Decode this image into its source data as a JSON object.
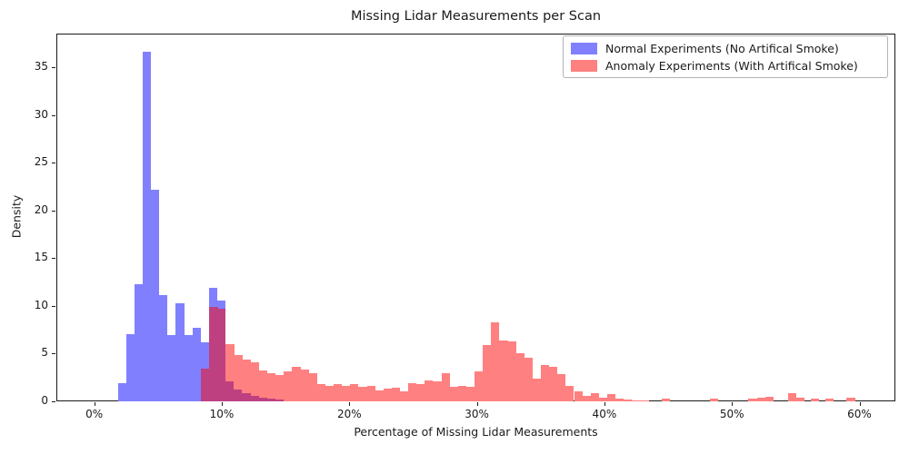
{
  "chart_data": {
    "type": "bar",
    "subtype": "overlaid-histogram",
    "title": "Missing Lidar Measurements per Scan",
    "xlabel": "Percentage of Missing Lidar Measurements",
    "ylabel": "Density",
    "x_tick_labels": [
      "0%",
      "10%",
      "20%",
      "30%",
      "40%",
      "50%",
      "60%"
    ],
    "x_tick_values": [
      0,
      10,
      20,
      30,
      40,
      50,
      60
    ],
    "y_tick_labels": [
      "0",
      "5",
      "10",
      "15",
      "20",
      "25",
      "30",
      "35"
    ],
    "y_tick_values": [
      0,
      5,
      10,
      15,
      20,
      25,
      30,
      35
    ],
    "xlim": [
      -3.0,
      62.8
    ],
    "ylim": [
      0,
      38.6
    ],
    "grid": false,
    "legend_position": "upper right",
    "overlap_color": "#bf4080",
    "axis_color": "#1a1a1a",
    "series": [
      {
        "name": "Normal Experiments (No Artifical Smoke)",
        "color": "#8080ff",
        "bars_format": "[start_pct, end_pct, density]",
        "bars": [
          [
            1.85,
            2.5,
            1.9
          ],
          [
            2.5,
            3.15,
            7.0
          ],
          [
            3.15,
            3.8,
            12.3
          ],
          [
            3.8,
            4.45,
            36.6
          ],
          [
            4.45,
            5.1,
            22.2
          ],
          [
            5.1,
            5.75,
            11.1
          ],
          [
            5.75,
            6.4,
            6.9
          ],
          [
            6.4,
            7.05,
            10.3
          ],
          [
            7.05,
            7.7,
            6.9
          ],
          [
            7.7,
            8.35,
            7.7
          ],
          [
            8.35,
            9.0,
            6.2
          ],
          [
            9.0,
            9.65,
            11.9
          ],
          [
            9.65,
            10.3,
            10.5
          ],
          [
            10.3,
            10.95,
            2.1
          ],
          [
            10.95,
            11.6,
            1.2
          ],
          [
            11.6,
            12.25,
            0.8
          ],
          [
            12.25,
            12.9,
            0.5
          ],
          [
            12.9,
            13.55,
            0.35
          ],
          [
            13.55,
            14.2,
            0.25
          ],
          [
            14.2,
            14.85,
            0.15
          ]
        ]
      },
      {
        "name": "Anomaly Experiments (With Artifical Smoke)",
        "color": "#ff8080",
        "bars_format": "[start_pct, end_pct, density]",
        "bars": [
          [
            8.37,
            9.02,
            3.4
          ],
          [
            9.02,
            9.67,
            9.9
          ],
          [
            9.67,
            10.32,
            9.7
          ],
          [
            10.32,
            10.97,
            6.0
          ],
          [
            10.97,
            11.62,
            4.8
          ],
          [
            11.62,
            12.27,
            4.4
          ],
          [
            12.27,
            12.92,
            4.1
          ],
          [
            12.92,
            13.57,
            3.2
          ],
          [
            13.57,
            14.22,
            2.9
          ],
          [
            14.22,
            14.87,
            2.7
          ],
          [
            14.87,
            15.52,
            3.1
          ],
          [
            15.52,
            16.17,
            3.6
          ],
          [
            16.17,
            16.82,
            3.3
          ],
          [
            16.82,
            17.47,
            2.9
          ],
          [
            17.47,
            18.12,
            1.8
          ],
          [
            18.12,
            18.77,
            1.6
          ],
          [
            18.77,
            19.42,
            1.8
          ],
          [
            19.42,
            20.07,
            1.6
          ],
          [
            20.07,
            20.72,
            1.8
          ],
          [
            20.72,
            21.37,
            1.5
          ],
          [
            21.37,
            22.02,
            1.6
          ],
          [
            22.02,
            22.67,
            1.1
          ],
          [
            22.67,
            23.32,
            1.3
          ],
          [
            23.32,
            23.97,
            1.4
          ],
          [
            23.97,
            24.62,
            1.0
          ],
          [
            24.62,
            25.27,
            1.9
          ],
          [
            25.27,
            25.92,
            1.8
          ],
          [
            25.92,
            26.57,
            2.2
          ],
          [
            26.57,
            27.22,
            2.1
          ],
          [
            27.22,
            27.87,
            2.9
          ],
          [
            27.87,
            28.52,
            1.5
          ],
          [
            28.52,
            29.17,
            1.6
          ],
          [
            29.17,
            29.82,
            1.5
          ],
          [
            29.82,
            30.47,
            3.1
          ],
          [
            30.47,
            31.12,
            5.9
          ],
          [
            31.12,
            31.77,
            8.3
          ],
          [
            31.77,
            32.42,
            6.4
          ],
          [
            32.42,
            33.07,
            6.3
          ],
          [
            33.07,
            33.72,
            5.0
          ],
          [
            33.72,
            34.37,
            4.5
          ],
          [
            34.37,
            35.02,
            2.4
          ],
          [
            35.02,
            35.67,
            3.8
          ],
          [
            35.67,
            36.32,
            3.6
          ],
          [
            36.32,
            36.97,
            2.8
          ],
          [
            36.97,
            37.62,
            1.6
          ],
          [
            37.62,
            38.27,
            1.0
          ],
          [
            38.27,
            38.92,
            0.55
          ],
          [
            38.92,
            39.57,
            0.8
          ],
          [
            39.57,
            40.22,
            0.4
          ],
          [
            40.22,
            40.87,
            0.75
          ],
          [
            40.87,
            41.52,
            0.25
          ],
          [
            41.52,
            42.17,
            0.12
          ],
          [
            42.17,
            43.47,
            0.05
          ],
          [
            44.5,
            45.15,
            0.22
          ],
          [
            48.3,
            48.95,
            0.25
          ],
          [
            51.3,
            51.95,
            0.3
          ],
          [
            51.95,
            52.6,
            0.38
          ],
          [
            52.6,
            53.25,
            0.48
          ],
          [
            54.4,
            55.05,
            0.8
          ],
          [
            55.05,
            55.7,
            0.38
          ],
          [
            56.2,
            56.85,
            0.25
          ],
          [
            57.3,
            57.95,
            0.3
          ],
          [
            59.0,
            59.65,
            0.38
          ]
        ]
      }
    ]
  }
}
